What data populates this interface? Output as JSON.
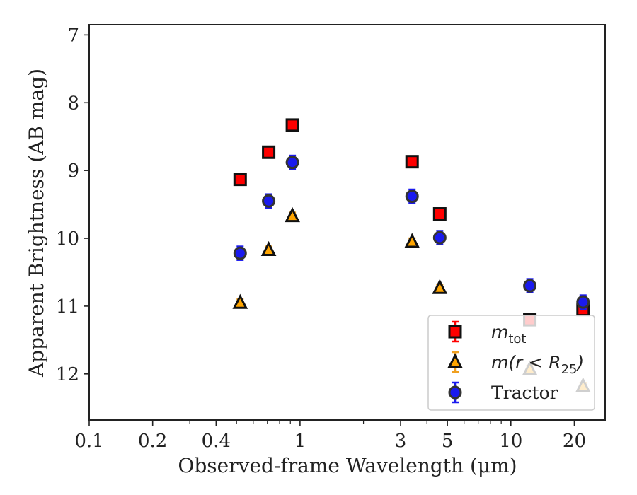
{
  "chart_data": {
    "type": "scatter",
    "xlabel": "Observed-frame Wavelength (μm)",
    "ylabel": "Apparent Brightness (AB mag)",
    "xscale": "log",
    "xlim": [
      0.1,
      28
    ],
    "ylim": [
      12.68,
      6.85
    ],
    "y_inverted": true,
    "xticks": [
      {
        "value": 0.1,
        "label": "0.1"
      },
      {
        "value": 0.2,
        "label": "0.2"
      },
      {
        "value": 0.4,
        "label": "0.4"
      },
      {
        "value": 1,
        "label": "1"
      },
      {
        "value": 3,
        "label": "3"
      },
      {
        "value": 5,
        "label": "5"
      },
      {
        "value": 10,
        "label": "10"
      },
      {
        "value": 20,
        "label": "20"
      }
    ],
    "yticks": [
      {
        "value": 7,
        "label": "7"
      },
      {
        "value": 8,
        "label": "8"
      },
      {
        "value": 9,
        "label": "9"
      },
      {
        "value": 10,
        "label": "10"
      },
      {
        "value": 11,
        "label": "11"
      },
      {
        "value": 12,
        "label": "12"
      }
    ],
    "legend_position": "lower-right",
    "series": [
      {
        "name": "m_tot",
        "legend_main": "m",
        "legend_sub": "tot",
        "marker": "square",
        "fill": "#ff0000",
        "errcolor": "#ff0000",
        "points": [
          {
            "x": 0.52,
            "y": 9.13,
            "err": 0.07
          },
          {
            "x": 0.71,
            "y": 8.73,
            "err": 0.07
          },
          {
            "x": 0.92,
            "y": 8.33,
            "err": 0.07
          },
          {
            "x": 3.4,
            "y": 8.87,
            "err": 0.07
          },
          {
            "x": 4.6,
            "y": 9.64,
            "err": 0.07
          },
          {
            "x": 12.3,
            "y": 11.2,
            "err": 0.07
          },
          {
            "x": 22.0,
            "y": 11.05,
            "err": 0.07
          }
        ]
      },
      {
        "name": "m(r < R_25)",
        "legend_main": "m(r < R",
        "legend_sub": "25",
        "legend_tail": ")",
        "marker": "triangle",
        "fill": "#ffa500",
        "errcolor": "#f0a020",
        "points": [
          {
            "x": 0.52,
            "y": 10.95,
            "err": 0.05
          },
          {
            "x": 0.71,
            "y": 10.17,
            "err": 0.05
          },
          {
            "x": 0.92,
            "y": 9.67,
            "err": 0.05
          },
          {
            "x": 3.4,
            "y": 10.05,
            "err": 0.05
          },
          {
            "x": 4.6,
            "y": 10.73,
            "err": 0.05
          },
          {
            "x": 12.3,
            "y": 11.93,
            "err": 0.05
          },
          {
            "x": 22.0,
            "y": 12.18,
            "err": 0.05
          }
        ]
      },
      {
        "name": "Tractor",
        "marker": "circle",
        "fill": "#1a1aee",
        "errcolor": "#1a1aee",
        "points": [
          {
            "x": 0.52,
            "y": 10.22,
            "err": 0.1
          },
          {
            "x": 0.71,
            "y": 9.45,
            "err": 0.1
          },
          {
            "x": 0.92,
            "y": 8.88,
            "err": 0.1
          },
          {
            "x": 3.4,
            "y": 9.38,
            "err": 0.1
          },
          {
            "x": 4.6,
            "y": 9.99,
            "err": 0.1
          },
          {
            "x": 12.3,
            "y": 10.7,
            "err": 0.1
          },
          {
            "x": 22.0,
            "y": 10.94,
            "err": 0.1
          }
        ]
      }
    ]
  }
}
